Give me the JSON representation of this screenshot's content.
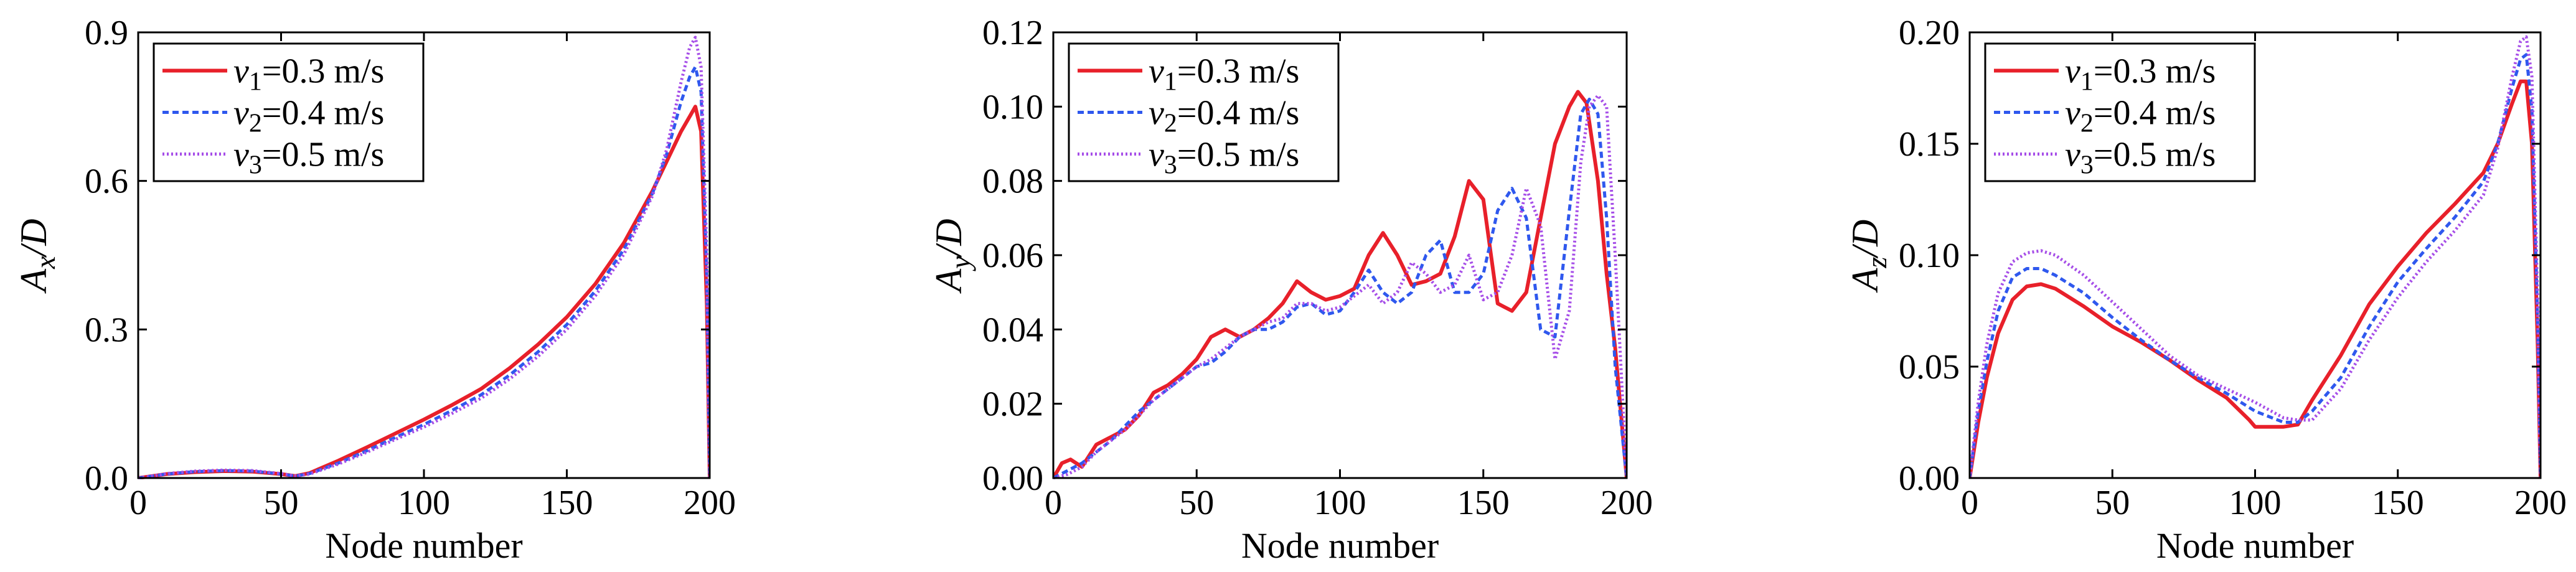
{
  "chart_data": [
    {
      "type": "line",
      "panel": "left",
      "ylabel_main": "A",
      "ylabel_sub": "x",
      "ylabel_tail": "/D",
      "xlabel": "Node number",
      "xlim": [
        0,
        200
      ],
      "ylim": [
        0,
        0.9
      ],
      "xticks": [
        "0",
        "50",
        "100",
        "150",
        "200"
      ],
      "yticks": [
        "0.0",
        "0.3",
        "0.6",
        "0.9"
      ],
      "ytick_values": [
        0,
        0.3,
        0.6,
        0.9
      ],
      "legend_position": "top-left",
      "series": [
        {
          "var": "v",
          "sub": "1",
          "value": "=0.3 m/s",
          "color": "#e8202a",
          "dash": "none",
          "x": [
            0,
            5,
            10,
            20,
            30,
            40,
            50,
            55,
            60,
            70,
            80,
            90,
            100,
            110,
            120,
            130,
            140,
            150,
            160,
            170,
            180,
            185,
            190,
            193,
            195,
            197,
            199,
            200
          ],
          "y": [
            0,
            0.004,
            0.008,
            0.012,
            0.014,
            0.013,
            0.008,
            0.004,
            0.01,
            0.035,
            0.062,
            0.09,
            0.118,
            0.148,
            0.18,
            0.222,
            0.27,
            0.325,
            0.392,
            0.475,
            0.58,
            0.64,
            0.7,
            0.73,
            0.75,
            0.7,
            0.35,
            0
          ]
        },
        {
          "var": "v",
          "sub": "2",
          "value": "=0.4 m/s",
          "color": "#2f58ee",
          "dash": "10 6",
          "x": [
            0,
            5,
            10,
            20,
            30,
            40,
            50,
            55,
            60,
            70,
            80,
            90,
            100,
            110,
            120,
            130,
            140,
            150,
            160,
            170,
            180,
            185,
            190,
            193,
            195,
            197,
            199,
            200
          ],
          "y": [
            0,
            0.004,
            0.008,
            0.013,
            0.015,
            0.014,
            0.008,
            0.004,
            0.009,
            0.03,
            0.055,
            0.082,
            0.108,
            0.137,
            0.168,
            0.208,
            0.255,
            0.31,
            0.378,
            0.462,
            0.575,
            0.655,
            0.76,
            0.81,
            0.83,
            0.78,
            0.4,
            0
          ]
        },
        {
          "var": "v",
          "sub": "3",
          "value": "=0.5 m/s",
          "color": "#a64ee8",
          "dash": "3 4",
          "x": [
            0,
            5,
            10,
            20,
            30,
            40,
            50,
            55,
            60,
            70,
            80,
            90,
            100,
            110,
            120,
            130,
            140,
            150,
            160,
            170,
            180,
            185,
            190,
            193,
            195,
            197,
            199,
            200
          ],
          "y": [
            0,
            0.004,
            0.009,
            0.014,
            0.016,
            0.015,
            0.009,
            0.004,
            0.008,
            0.028,
            0.052,
            0.078,
            0.103,
            0.131,
            0.161,
            0.2,
            0.246,
            0.3,
            0.368,
            0.452,
            0.57,
            0.665,
            0.8,
            0.87,
            0.89,
            0.83,
            0.45,
            0
          ]
        }
      ]
    },
    {
      "type": "line",
      "panel": "middle",
      "ylabel_main": "A",
      "ylabel_sub": "y",
      "ylabel_tail": "/D",
      "xlabel": "Node number",
      "xlim": [
        0,
        200
      ],
      "ylim": [
        0,
        0.12
      ],
      "xticks": [
        "0",
        "50",
        "100",
        "150",
        "200"
      ],
      "yticks": [
        "0.00",
        "0.02",
        "0.04",
        "0.06",
        "0.08",
        "0.10",
        "0.12"
      ],
      "ytick_values": [
        0,
        0.02,
        0.04,
        0.06,
        0.08,
        0.1,
        0.12
      ],
      "legend_position": "top-left",
      "series": [
        {
          "var": "v",
          "sub": "1",
          "value": "=0.3 m/s",
          "color": "#e8202a",
          "dash": "none",
          "x": [
            0,
            3,
            6,
            10,
            15,
            20,
            25,
            30,
            35,
            40,
            45,
            50,
            55,
            60,
            65,
            70,
            75,
            80,
            85,
            90,
            95,
            100,
            105,
            110,
            115,
            120,
            125,
            130,
            135,
            140,
            145,
            150,
            155,
            160,
            165,
            170,
            175,
            180,
            183,
            186,
            190,
            193,
            196,
            200
          ],
          "y": [
            0,
            0.004,
            0.005,
            0.003,
            0.009,
            0.011,
            0.013,
            0.017,
            0.023,
            0.025,
            0.028,
            0.032,
            0.038,
            0.04,
            0.038,
            0.04,
            0.043,
            0.047,
            0.053,
            0.05,
            0.048,
            0.049,
            0.051,
            0.06,
            0.066,
            0.06,
            0.052,
            0.053,
            0.055,
            0.065,
            0.08,
            0.075,
            0.047,
            0.045,
            0.05,
            0.07,
            0.09,
            0.1,
            0.104,
            0.101,
            0.08,
            0.055,
            0.035,
            0
          ]
        },
        {
          "var": "v",
          "sub": "2",
          "value": "=0.4 m/s",
          "color": "#2f58ee",
          "dash": "10 6",
          "x": [
            0,
            5,
            10,
            15,
            20,
            25,
            30,
            35,
            40,
            45,
            50,
            55,
            60,
            65,
            70,
            75,
            80,
            85,
            90,
            95,
            100,
            105,
            110,
            115,
            120,
            125,
            130,
            135,
            140,
            145,
            150,
            155,
            160,
            165,
            170,
            175,
            180,
            184,
            187,
            190,
            193,
            196,
            200
          ],
          "y": [
            0,
            0.002,
            0.004,
            0.007,
            0.01,
            0.014,
            0.018,
            0.021,
            0.024,
            0.027,
            0.03,
            0.031,
            0.034,
            0.038,
            0.04,
            0.04,
            0.042,
            0.046,
            0.047,
            0.044,
            0.045,
            0.05,
            0.056,
            0.05,
            0.047,
            0.05,
            0.06,
            0.064,
            0.05,
            0.05,
            0.055,
            0.072,
            0.078,
            0.07,
            0.04,
            0.038,
            0.072,
            0.098,
            0.102,
            0.098,
            0.07,
            0.03,
            0
          ]
        },
        {
          "var": "v",
          "sub": "3",
          "value": "=0.5 m/s",
          "color": "#a64ee8",
          "dash": "3 4",
          "x": [
            0,
            5,
            10,
            15,
            20,
            25,
            30,
            35,
            40,
            45,
            50,
            55,
            60,
            65,
            70,
            75,
            80,
            85,
            90,
            95,
            100,
            105,
            110,
            115,
            120,
            125,
            130,
            135,
            140,
            145,
            150,
            155,
            160,
            165,
            170,
            175,
            180,
            184,
            187,
            190,
            193,
            196,
            200
          ],
          "y": [
            0,
            0.001,
            0.003,
            0.007,
            0.01,
            0.013,
            0.017,
            0.021,
            0.024,
            0.027,
            0.03,
            0.032,
            0.035,
            0.038,
            0.04,
            0.042,
            0.043,
            0.047,
            0.047,
            0.045,
            0.046,
            0.049,
            0.052,
            0.047,
            0.05,
            0.058,
            0.055,
            0.05,
            0.052,
            0.06,
            0.048,
            0.05,
            0.06,
            0.078,
            0.068,
            0.032,
            0.045,
            0.085,
            0.1,
            0.103,
            0.1,
            0.06,
            0
          ]
        }
      ]
    },
    {
      "type": "line",
      "panel": "right",
      "ylabel_main": "A",
      "ylabel_sub": "z",
      "ylabel_tail": "/D",
      "xlabel": "Node number",
      "xlim": [
        0,
        200
      ],
      "ylim": [
        0,
        0.2
      ],
      "xticks": [
        "0",
        "50",
        "100",
        "150",
        "200"
      ],
      "yticks": [
        "0.00",
        "0.05",
        "0.10",
        "0.15",
        "0.20"
      ],
      "ytick_values": [
        0,
        0.05,
        0.1,
        0.15,
        0.2
      ],
      "legend_position": "top-left",
      "series": [
        {
          "var": "v",
          "sub": "1",
          "value": "=0.3 m/s",
          "color": "#e8202a",
          "dash": "none",
          "x": [
            0,
            3,
            6,
            10,
            15,
            20,
            25,
            30,
            40,
            50,
            60,
            70,
            80,
            90,
            98,
            100,
            110,
            115,
            120,
            130,
            140,
            150,
            160,
            170,
            180,
            185,
            190,
            193,
            195,
            197,
            199,
            200
          ],
          "y": [
            0,
            0.025,
            0.045,
            0.065,
            0.08,
            0.086,
            0.087,
            0.085,
            0.077,
            0.068,
            0.061,
            0.053,
            0.044,
            0.036,
            0.026,
            0.023,
            0.023,
            0.024,
            0.035,
            0.055,
            0.078,
            0.095,
            0.11,
            0.123,
            0.137,
            0.15,
            0.168,
            0.178,
            0.178,
            0.15,
            0.06,
            0
          ]
        },
        {
          "var": "v",
          "sub": "2",
          "value": "=0.4 m/s",
          "color": "#2f58ee",
          "dash": "10 6",
          "x": [
            0,
            3,
            6,
            10,
            15,
            20,
            25,
            30,
            40,
            50,
            60,
            70,
            80,
            90,
            100,
            110,
            115,
            120,
            130,
            140,
            150,
            160,
            170,
            180,
            185,
            190,
            193,
            195,
            197,
            199,
            200
          ],
          "y": [
            0,
            0.03,
            0.052,
            0.075,
            0.09,
            0.094,
            0.094,
            0.091,
            0.083,
            0.072,
            0.062,
            0.053,
            0.045,
            0.038,
            0.03,
            0.025,
            0.025,
            0.03,
            0.045,
            0.068,
            0.088,
            0.103,
            0.117,
            0.133,
            0.15,
            0.175,
            0.188,
            0.19,
            0.165,
            0.07,
            0
          ]
        },
        {
          "var": "v",
          "sub": "3",
          "value": "=0.5 m/s",
          "color": "#a64ee8",
          "dash": "3 4",
          "x": [
            0,
            3,
            6,
            10,
            15,
            20,
            25,
            30,
            40,
            50,
            60,
            70,
            80,
            90,
            100,
            110,
            115,
            120,
            130,
            140,
            150,
            160,
            170,
            180,
            185,
            190,
            193,
            195,
            197,
            199,
            200
          ],
          "y": [
            0,
            0.034,
            0.06,
            0.083,
            0.097,
            0.101,
            0.102,
            0.1,
            0.091,
            0.079,
            0.067,
            0.055,
            0.046,
            0.04,
            0.034,
            0.027,
            0.026,
            0.026,
            0.04,
            0.062,
            0.081,
            0.097,
            0.111,
            0.127,
            0.148,
            0.18,
            0.196,
            0.198,
            0.18,
            0.08,
            0
          ]
        }
      ]
    }
  ]
}
